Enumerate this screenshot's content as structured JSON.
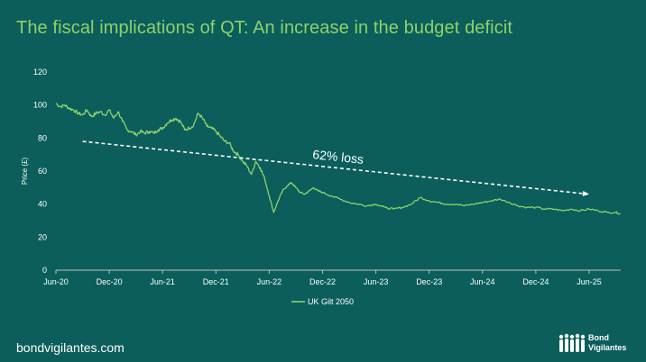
{
  "header": {
    "title": "The fiscal implications of QT: An increase in the budget deficit"
  },
  "footer": {
    "site": "bondvigilantes.com",
    "brand_line1": "Bond",
    "brand_line2": "Vigilantes"
  },
  "colors": {
    "background": "#0b5e5b",
    "line": "#8ed16b",
    "title": "#8ed16b",
    "annotation": "#ffffff"
  },
  "chart_data": {
    "type": "line",
    "title": "The fiscal implications of QT: An increase in the budget deficit",
    "xlabel": "",
    "ylabel": "Price (£)",
    "ylim": [
      0,
      120
    ],
    "yticks": [
      0,
      20,
      40,
      60,
      80,
      100,
      120
    ],
    "xticks": [
      "Jun-20",
      "Dec-20",
      "Jun-21",
      "Dec-21",
      "Jun-22",
      "Dec-22",
      "Jun-23",
      "Dec-23",
      "Jun-24",
      "Dec-24",
      "Jun-25"
    ],
    "grid": false,
    "legend": "bottom-center",
    "series": [
      {
        "name": "UK Gilt 2050",
        "x_months": [
          0,
          0.5,
          1,
          1.5,
          2,
          2.5,
          3,
          3.5,
          4,
          4.5,
          5,
          5.5,
          6,
          6.5,
          7,
          7.5,
          8,
          8.5,
          9,
          9.5,
          10,
          10.5,
          11,
          11.5,
          12,
          12.5,
          13,
          13.5,
          14,
          14.5,
          15,
          15.5,
          16,
          16.5,
          17,
          17.5,
          18,
          18.5,
          19,
          19.5,
          20,
          20.5,
          21,
          21.5,
          22,
          22.5,
          23,
          23.5,
          24,
          24.5,
          25,
          25.5,
          26,
          26.5,
          27,
          27.5,
          28,
          28.5,
          29,
          29.5,
          30,
          31,
          32,
          33,
          34,
          35,
          36,
          37,
          38,
          39,
          40,
          41,
          42,
          43,
          44,
          45,
          46,
          47,
          48,
          49,
          50,
          51,
          52,
          53,
          54,
          55,
          56,
          57,
          58,
          59,
          60,
          61,
          62,
          63,
          63.5
        ],
        "values": [
          101,
          99,
          100,
          98,
          97,
          95,
          94,
          97,
          93,
          95,
          96,
          94,
          97,
          92,
          96,
          90,
          85,
          84,
          82,
          84,
          83,
          84,
          83,
          85,
          86,
          89,
          91,
          92,
          90,
          85,
          86,
          88,
          95,
          92,
          87,
          86,
          84,
          81,
          78,
          77,
          72,
          70,
          66,
          63,
          58,
          66,
          62,
          55,
          45,
          35,
          42,
          48,
          51,
          53,
          50,
          47,
          46,
          48,
          50,
          48,
          47,
          45,
          43,
          41,
          40,
          39,
          40,
          38,
          37,
          38,
          40,
          44,
          42,
          41,
          40,
          40,
          39,
          40,
          41,
          42,
          43,
          41,
          39,
          38,
          38,
          37,
          37,
          36,
          37,
          36,
          37,
          36,
          35,
          35,
          34
        ]
      }
    ],
    "annotation": {
      "label": "62% loss",
      "from": {
        "x_month": 3,
        "y": 78
      },
      "to": {
        "x_month": 60,
        "y": 46
      }
    }
  }
}
